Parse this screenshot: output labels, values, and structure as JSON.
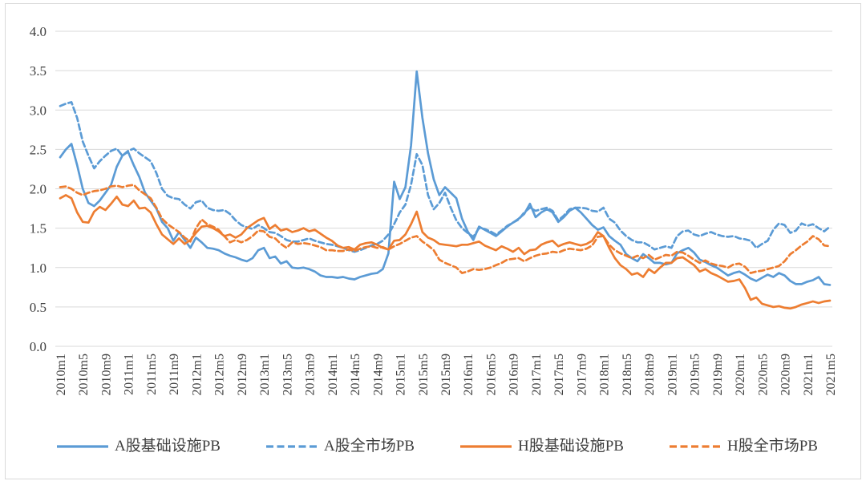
{
  "chart": {
    "background": "#ffffff",
    "border_color": "#d9d9d9",
    "gridline_color": "#d9d9d9",
    "axis_text_color": "#404040",
    "legend_text_color": "#3f3f3f",
    "y_axis": {
      "tick_labels": [
        "0.0",
        "0.5",
        "1.0",
        "1.5",
        "2.0",
        "2.5",
        "3.0",
        "3.5",
        "4.0"
      ]
    },
    "x_axis": {
      "tick_every": 4,
      "tick_labels": [
        "2010m1",
        "2010m5",
        "2010m9",
        "2011m1",
        "2011m5",
        "2011m9",
        "2012m1",
        "2012m5",
        "2012m9",
        "2013m1",
        "2013m5",
        "2013m9",
        "2014m1",
        "2014m5",
        "2014m9",
        "2015m1",
        "2015m5",
        "2015m9",
        "2016m1",
        "2016m5",
        "2016m9",
        "2017m1",
        "2017m5",
        "2017m9",
        "2018m1",
        "2018m5",
        "2018m9",
        "2019m1",
        "2019m5",
        "2019m9",
        "2020m1",
        "2020m5",
        "2020m9",
        "2021m1",
        "2021m5"
      ]
    }
  },
  "chart_data": {
    "type": "line",
    "title": "",
    "xlabel": "",
    "ylabel": "",
    "ylim": [
      0,
      4
    ],
    "ytick_step": 0.5,
    "grid": true,
    "legend_position": "bottom",
    "x": [
      "2010m1",
      "2010m2",
      "2010m3",
      "2010m4",
      "2010m5",
      "2010m6",
      "2010m7",
      "2010m8",
      "2010m9",
      "2010m10",
      "2010m11",
      "2010m12",
      "2011m1",
      "2011m2",
      "2011m3",
      "2011m4",
      "2011m5",
      "2011m6",
      "2011m7",
      "2011m8",
      "2011m9",
      "2011m10",
      "2011m11",
      "2011m12",
      "2012m1",
      "2012m2",
      "2012m3",
      "2012m4",
      "2012m5",
      "2012m6",
      "2012m7",
      "2012m8",
      "2012m9",
      "2012m10",
      "2012m11",
      "2012m12",
      "2013m1",
      "2013m2",
      "2013m3",
      "2013m4",
      "2013m5",
      "2013m6",
      "2013m7",
      "2013m8",
      "2013m9",
      "2013m10",
      "2013m11",
      "2013m12",
      "2014m1",
      "2014m2",
      "2014m3",
      "2014m4",
      "2014m5",
      "2014m6",
      "2014m7",
      "2014m8",
      "2014m9",
      "2014m10",
      "2014m11",
      "2014m12",
      "2015m1",
      "2015m2",
      "2015m3",
      "2015m4",
      "2015m5",
      "2015m6",
      "2015m7",
      "2015m8",
      "2015m9",
      "2015m10",
      "2015m11",
      "2015m12",
      "2016m1",
      "2016m2",
      "2016m3",
      "2016m4",
      "2016m5",
      "2016m6",
      "2016m7",
      "2016m8",
      "2016m9",
      "2016m10",
      "2016m11",
      "2016m12",
      "2017m1",
      "2017m2",
      "2017m3",
      "2017m4",
      "2017m5",
      "2017m6",
      "2017m7",
      "2017m8",
      "2017m9",
      "2017m10",
      "2017m11",
      "2017m12",
      "2018m1",
      "2018m2",
      "2018m3",
      "2018m4",
      "2018m5",
      "2018m6",
      "2018m7",
      "2018m8",
      "2018m9",
      "2018m10",
      "2018m11",
      "2018m12",
      "2019m1",
      "2019m2",
      "2019m3",
      "2019m4",
      "2019m5",
      "2019m6",
      "2019m7",
      "2019m8",
      "2019m9",
      "2019m10",
      "2019m11",
      "2019m12",
      "2020m1",
      "2020m2",
      "2020m3",
      "2020m4",
      "2020m5",
      "2020m6",
      "2020m7",
      "2020m8",
      "2020m9",
      "2020m10",
      "2020m11",
      "2020m12",
      "2021m1",
      "2021m2",
      "2021m3",
      "2021m4",
      "2021m5"
    ],
    "series": [
      {
        "name": "A股基础设施PB",
        "color": "#5B9BD5",
        "line_style": "solid",
        "values": [
          2.4,
          2.5,
          2.57,
          2.3,
          2.0,
          1.82,
          1.78,
          1.85,
          1.95,
          2.05,
          2.28,
          2.42,
          2.47,
          2.3,
          2.15,
          1.95,
          1.85,
          1.75,
          1.58,
          1.5,
          1.34,
          1.45,
          1.35,
          1.25,
          1.38,
          1.32,
          1.25,
          1.24,
          1.22,
          1.18,
          1.15,
          1.13,
          1.1,
          1.08,
          1.12,
          1.22,
          1.25,
          1.12,
          1.14,
          1.05,
          1.08,
          1.0,
          0.99,
          1.0,
          0.98,
          0.95,
          0.9,
          0.88,
          0.88,
          0.87,
          0.88,
          0.86,
          0.85,
          0.88,
          0.9,
          0.92,
          0.93,
          0.98,
          1.18,
          2.09,
          1.87,
          2.02,
          2.55,
          3.49,
          2.9,
          2.45,
          2.12,
          1.92,
          2.02,
          1.95,
          1.88,
          1.62,
          1.46,
          1.35,
          1.52,
          1.48,
          1.44,
          1.4,
          1.46,
          1.52,
          1.57,
          1.62,
          1.68,
          1.81,
          1.64,
          1.7,
          1.74,
          1.7,
          1.58,
          1.64,
          1.72,
          1.76,
          1.7,
          1.62,
          1.54,
          1.48,
          1.51,
          1.4,
          1.34,
          1.29,
          1.17,
          1.12,
          1.08,
          1.17,
          1.12,
          1.06,
          1.06,
          1.04,
          1.06,
          1.18,
          1.22,
          1.25,
          1.19,
          1.1,
          1.07,
          1.03,
          1.0,
          0.95,
          0.9,
          0.93,
          0.95,
          0.91,
          0.86,
          0.83,
          0.87,
          0.91,
          0.88,
          0.93,
          0.9,
          0.83,
          0.79,
          0.79,
          0.82,
          0.84,
          0.88,
          0.79,
          0.78
        ]
      },
      {
        "name": "A股全市场PB",
        "color": "#5B9BD5",
        "line_style": "dashed",
        "values": [
          3.05,
          3.08,
          3.1,
          2.9,
          2.6,
          2.42,
          2.26,
          2.35,
          2.42,
          2.48,
          2.51,
          2.42,
          2.48,
          2.51,
          2.45,
          2.4,
          2.35,
          2.2,
          2.0,
          1.91,
          1.88,
          1.87,
          1.8,
          1.75,
          1.83,
          1.85,
          1.76,
          1.73,
          1.72,
          1.73,
          1.68,
          1.6,
          1.54,
          1.51,
          1.49,
          1.54,
          1.5,
          1.45,
          1.44,
          1.4,
          1.35,
          1.33,
          1.33,
          1.35,
          1.37,
          1.34,
          1.32,
          1.3,
          1.29,
          1.27,
          1.25,
          1.22,
          1.2,
          1.22,
          1.25,
          1.28,
          1.3,
          1.34,
          1.42,
          1.55,
          1.7,
          1.8,
          2.05,
          2.44,
          2.3,
          1.92,
          1.74,
          1.82,
          1.95,
          1.76,
          1.6,
          1.5,
          1.44,
          1.39,
          1.5,
          1.49,
          1.46,
          1.42,
          1.47,
          1.53,
          1.57,
          1.61,
          1.7,
          1.76,
          1.72,
          1.74,
          1.76,
          1.72,
          1.6,
          1.66,
          1.74,
          1.76,
          1.76,
          1.75,
          1.72,
          1.71,
          1.76,
          1.62,
          1.57,
          1.47,
          1.4,
          1.35,
          1.32,
          1.32,
          1.28,
          1.23,
          1.25,
          1.27,
          1.25,
          1.4,
          1.46,
          1.47,
          1.42,
          1.4,
          1.43,
          1.45,
          1.42,
          1.4,
          1.39,
          1.4,
          1.37,
          1.36,
          1.34,
          1.25,
          1.3,
          1.34,
          1.48,
          1.56,
          1.54,
          1.44,
          1.47,
          1.56,
          1.53,
          1.55,
          1.5,
          1.46,
          1.52
        ]
      },
      {
        "name": "H股基础设施PB",
        "color": "#ED7D31",
        "line_style": "solid",
        "values": [
          1.88,
          1.92,
          1.88,
          1.7,
          1.58,
          1.57,
          1.71,
          1.77,
          1.73,
          1.81,
          1.9,
          1.8,
          1.78,
          1.85,
          1.75,
          1.76,
          1.7,
          1.55,
          1.42,
          1.36,
          1.3,
          1.37,
          1.3,
          1.35,
          1.44,
          1.52,
          1.53,
          1.5,
          1.46,
          1.4,
          1.42,
          1.38,
          1.42,
          1.5,
          1.55,
          1.6,
          1.63,
          1.49,
          1.54,
          1.47,
          1.49,
          1.45,
          1.47,
          1.5,
          1.46,
          1.48,
          1.43,
          1.38,
          1.34,
          1.28,
          1.25,
          1.26,
          1.23,
          1.29,
          1.31,
          1.32,
          1.29,
          1.25,
          1.23,
          1.34,
          1.35,
          1.42,
          1.55,
          1.71,
          1.45,
          1.38,
          1.35,
          1.3,
          1.29,
          1.28,
          1.27,
          1.29,
          1.29,
          1.31,
          1.33,
          1.28,
          1.25,
          1.22,
          1.27,
          1.24,
          1.2,
          1.25,
          1.17,
          1.22,
          1.23,
          1.29,
          1.32,
          1.34,
          1.27,
          1.3,
          1.32,
          1.3,
          1.28,
          1.3,
          1.34,
          1.45,
          1.4,
          1.25,
          1.12,
          1.03,
          0.98,
          0.91,
          0.93,
          0.88,
          0.98,
          0.93,
          1.0,
          1.06,
          1.06,
          1.12,
          1.13,
          1.08,
          1.03,
          0.95,
          0.98,
          0.93,
          0.9,
          0.86,
          0.82,
          0.83,
          0.85,
          0.74,
          0.59,
          0.62,
          0.54,
          0.52,
          0.5,
          0.51,
          0.49,
          0.48,
          0.5,
          0.53,
          0.55,
          0.57,
          0.55,
          0.57,
          0.58
        ]
      },
      {
        "name": "H股全市场PB",
        "color": "#ED7D31",
        "line_style": "dashed",
        "values": [
          2.02,
          2.03,
          2.0,
          1.95,
          1.92,
          1.95,
          1.97,
          1.98,
          2.0,
          2.03,
          2.04,
          2.02,
          2.04,
          2.05,
          1.98,
          1.93,
          1.88,
          1.76,
          1.62,
          1.55,
          1.5,
          1.45,
          1.38,
          1.33,
          1.5,
          1.61,
          1.55,
          1.52,
          1.48,
          1.4,
          1.32,
          1.35,
          1.32,
          1.35,
          1.4,
          1.47,
          1.46,
          1.39,
          1.37,
          1.3,
          1.25,
          1.32,
          1.3,
          1.31,
          1.3,
          1.28,
          1.26,
          1.22,
          1.22,
          1.21,
          1.21,
          1.23,
          1.21,
          1.24,
          1.26,
          1.27,
          1.25,
          1.26,
          1.23,
          1.27,
          1.3,
          1.34,
          1.38,
          1.4,
          1.33,
          1.28,
          1.22,
          1.1,
          1.06,
          1.03,
          1.0,
          0.93,
          0.95,
          0.98,
          0.97,
          0.98,
          1.0,
          1.03,
          1.06,
          1.1,
          1.11,
          1.12,
          1.08,
          1.12,
          1.15,
          1.17,
          1.18,
          1.2,
          1.19,
          1.22,
          1.24,
          1.23,
          1.22,
          1.24,
          1.28,
          1.39,
          1.4,
          1.29,
          1.22,
          1.18,
          1.15,
          1.12,
          1.15,
          1.12,
          1.16,
          1.1,
          1.13,
          1.16,
          1.15,
          1.2,
          1.19,
          1.15,
          1.1,
          1.06,
          1.09,
          1.05,
          1.03,
          1.02,
          1.0,
          1.04,
          1.05,
          1.01,
          0.93,
          0.95,
          0.96,
          0.98,
          1.0,
          1.02,
          1.08,
          1.17,
          1.22,
          1.28,
          1.33,
          1.4,
          1.36,
          1.28,
          1.27
        ]
      }
    ]
  }
}
